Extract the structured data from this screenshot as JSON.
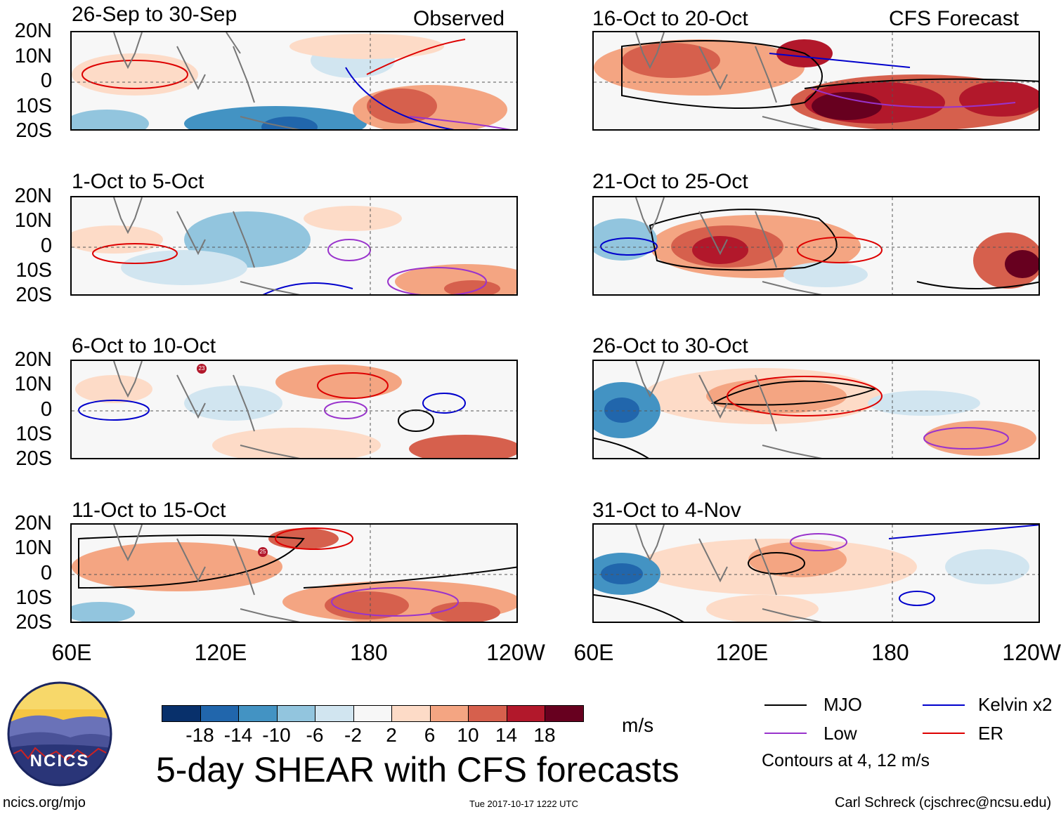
{
  "panels_left": [
    {
      "title": "26-Sep to 30-Sep",
      "tag": "Observed"
    },
    {
      "title": "1-Oct to 5-Oct",
      "tag": ""
    },
    {
      "title": "6-Oct to 10-Oct",
      "tag": ""
    },
    {
      "title": "11-Oct to 15-Oct",
      "tag": ""
    }
  ],
  "panels_right": [
    {
      "title": "16-Oct to 20-Oct",
      "tag": "CFS Forecast"
    },
    {
      "title": "21-Oct to 25-Oct",
      "tag": ""
    },
    {
      "title": "26-Oct to 30-Oct",
      "tag": ""
    },
    {
      "title": "31-Oct to 4-Nov",
      "tag": ""
    }
  ],
  "lat_labels": [
    "20N",
    "10N",
    "0",
    "10S",
    "20S"
  ],
  "lon_labels": [
    "60E",
    "120E",
    "180",
    "120W"
  ],
  "lon_labels_right": [
    "60E",
    "120E",
    "180",
    "120W"
  ],
  "storm_markers": [
    "23",
    "25"
  ],
  "colorbar": {
    "colors": [
      "#08306b",
      "#2166ac",
      "#4393c3",
      "#92c5de",
      "#d1e5f0",
      "#f7f7f7",
      "#fddbc7",
      "#f4a582",
      "#d6604d",
      "#b2182b",
      "#67001f"
    ],
    "ticks": [
      "-18",
      "-14",
      "-10",
      "-6",
      "-2",
      "2",
      "6",
      "10",
      "14",
      "18"
    ],
    "units": "m/s"
  },
  "main_title": "5-day SHEAR with CFS forecasts",
  "legend": {
    "items": [
      {
        "label": "MJO",
        "color": "#000000"
      },
      {
        "label": "Kelvin x2",
        "color": "#0000cc"
      },
      {
        "label": "Low",
        "color": "#9933cc"
      },
      {
        "label": "ER",
        "color": "#dd0000"
      }
    ],
    "note": "Contours at 4, 12 m/s"
  },
  "logo_text": "NCICS",
  "footer": {
    "left": "ncics.org/mjo",
    "center": "Tue 2017-10-17 1222 UTC",
    "right": "Carl Schreck (cjschrec@ncsu.edu)"
  }
}
